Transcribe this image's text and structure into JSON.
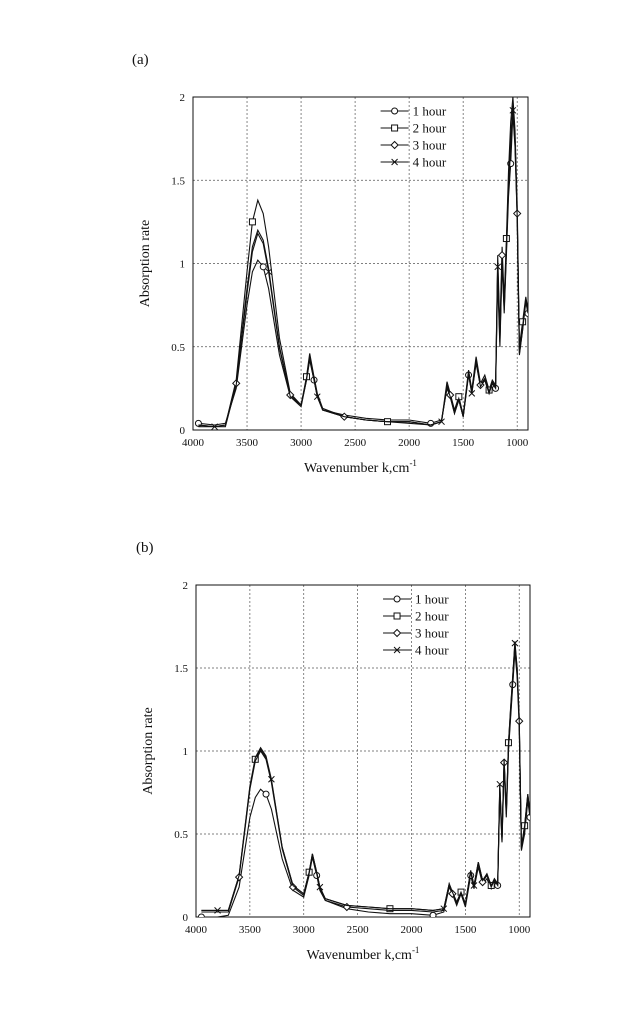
{
  "chart_data": [
    {
      "panel_label": "(a)",
      "type": "line",
      "title": "",
      "xlabel": "Wavenumber k,cm",
      "xlabel_sup": "-1",
      "ylabel": "Absorption rate",
      "xlim": [
        4000,
        900
      ],
      "ylim": [
        0,
        2
      ],
      "xticks": [
        4000,
        3500,
        3000,
        2500,
        2000,
        1500,
        1000
      ],
      "xtick_labels": [
        "4000",
        "3500",
        "3000",
        "2500",
        "2000",
        "1500",
        "1000"
      ],
      "yticks": [
        0,
        0.5,
        1,
        1.5,
        2
      ],
      "ytick_labels": [
        "0",
        "0.5",
        "1",
        "1.5",
        "2"
      ],
      "grid": true,
      "legend_position": "top-right",
      "series": [
        {
          "name": "1 hour",
          "marker": "circle",
          "x": [
            3950,
            3800,
            3700,
            3600,
            3500,
            3450,
            3400,
            3350,
            3300,
            3200,
            3100,
            3000,
            2950,
            2920,
            2880,
            2850,
            2800,
            2600,
            2400,
            2200,
            2000,
            1800,
            1700,
            1650,
            1620,
            1580,
            1540,
            1500,
            1450,
            1420,
            1380,
            1340,
            1300,
            1260,
            1230,
            1200,
            1180,
            1160,
            1140,
            1120,
            1100,
            1080,
            1060,
            1040,
            1020,
            1000,
            980,
            950,
            920,
            900
          ],
          "y": [
            0.04,
            0.03,
            0.04,
            0.25,
            0.75,
            0.95,
            1.02,
            0.98,
            0.85,
            0.45,
            0.2,
            0.15,
            0.3,
            0.42,
            0.3,
            0.2,
            0.12,
            0.09,
            0.07,
            0.06,
            0.06,
            0.04,
            0.06,
            0.25,
            0.2,
            0.1,
            0.18,
            0.08,
            0.33,
            0.22,
            0.4,
            0.26,
            0.3,
            0.22,
            0.28,
            0.25,
            0.9,
            0.5,
            1.0,
            0.7,
            1.05,
            1.4,
            1.6,
            1.9,
            1.7,
            1.27,
            0.45,
            0.6,
            0.78,
            0.7
          ]
        },
        {
          "name": "2 hour",
          "marker": "square",
          "x": [
            3950,
            3800,
            3700,
            3600,
            3500,
            3450,
            3400,
            3350,
            3300,
            3200,
            3100,
            3000,
            2950,
            2920,
            2880,
            2850,
            2800,
            2600,
            2400,
            2200,
            2000,
            1800,
            1700,
            1650,
            1620,
            1580,
            1540,
            1500,
            1450,
            1420,
            1380,
            1340,
            1300,
            1260,
            1230,
            1200,
            1180,
            1160,
            1140,
            1120,
            1100,
            1080,
            1060,
            1040,
            1020,
            1000,
            980,
            950,
            920,
            900
          ],
          "y": [
            0.03,
            0.02,
            0.03,
            0.3,
            0.95,
            1.25,
            1.38,
            1.3,
            1.1,
            0.55,
            0.22,
            0.15,
            0.32,
            0.46,
            0.32,
            0.22,
            0.13,
            0.08,
            0.06,
            0.05,
            0.05,
            0.03,
            0.05,
            0.29,
            0.22,
            0.12,
            0.2,
            0.09,
            0.36,
            0.24,
            0.44,
            0.28,
            0.33,
            0.24,
            0.3,
            0.27,
            1.05,
            0.6,
            1.1,
            0.78,
            1.15,
            1.55,
            1.85,
            2.0,
            1.8,
            1.35,
            0.5,
            0.65,
            0.8,
            0.72
          ]
        },
        {
          "name": "3 hour",
          "marker": "diamond",
          "x": [
            3950,
            3800,
            3700,
            3600,
            3500,
            3450,
            3400,
            3350,
            3300,
            3200,
            3100,
            3000,
            2950,
            2920,
            2880,
            2850,
            2800,
            2600,
            2400,
            2200,
            2000,
            1800,
            1700,
            1650,
            1620,
            1580,
            1540,
            1500,
            1450,
            1420,
            1380,
            1340,
            1300,
            1260,
            1230,
            1200,
            1180,
            1160,
            1140,
            1120,
            1100,
            1080,
            1060,
            1040,
            1020,
            1000,
            980,
            950,
            920,
            900
          ],
          "y": [
            0.03,
            0.02,
            0.03,
            0.28,
            0.85,
            1.1,
            1.2,
            1.14,
            0.97,
            0.5,
            0.21,
            0.15,
            0.31,
            0.44,
            0.31,
            0.21,
            0.12,
            0.08,
            0.06,
            0.05,
            0.05,
            0.03,
            0.05,
            0.27,
            0.21,
            0.11,
            0.19,
            0.08,
            0.35,
            0.23,
            0.42,
            0.27,
            0.31,
            0.23,
            0.29,
            0.26,
            1.0,
            0.55,
            1.05,
            0.74,
            1.1,
            1.5,
            1.75,
            1.95,
            1.75,
            1.3,
            0.48,
            0.62,
            0.79,
            0.71
          ]
        },
        {
          "name": "4 hour",
          "marker": "x",
          "x": [
            3950,
            3800,
            3700,
            3600,
            3500,
            3450,
            3400,
            3350,
            3300,
            3200,
            3100,
            3000,
            2950,
            2920,
            2880,
            2850,
            2800,
            2600,
            2400,
            2200,
            2000,
            1800,
            1700,
            1650,
            1620,
            1580,
            1540,
            1500,
            1450,
            1420,
            1380,
            1340,
            1300,
            1260,
            1230,
            1200,
            1180,
            1160,
            1140,
            1120,
            1100,
            1080,
            1060,
            1040,
            1020,
            1000,
            980,
            950,
            920,
            900
          ],
          "y": [
            0.02,
            0.02,
            0.02,
            0.27,
            0.82,
            1.07,
            1.18,
            1.12,
            0.95,
            0.49,
            0.2,
            0.14,
            0.3,
            0.43,
            0.3,
            0.2,
            0.12,
            0.08,
            0.06,
            0.05,
            0.04,
            0.03,
            0.05,
            0.26,
            0.2,
            0.1,
            0.18,
            0.08,
            0.34,
            0.22,
            0.41,
            0.26,
            0.3,
            0.22,
            0.28,
            0.25,
            0.98,
            0.53,
            1.02,
            0.72,
            1.08,
            1.45,
            1.7,
            1.92,
            1.72,
            1.28,
            0.46,
            0.6,
            0.77,
            0.7
          ]
        }
      ]
    },
    {
      "panel_label": "(b)",
      "type": "line",
      "title": "",
      "xlabel": "Wavenumber k,cm",
      "xlabel_sup": "-1",
      "ylabel": "Absorption rate",
      "xlim": [
        4000,
        900
      ],
      "ylim": [
        0,
        2
      ],
      "xticks": [
        4000,
        3500,
        3000,
        2500,
        2000,
        1500,
        1000
      ],
      "xtick_labels": [
        "4000",
        "3500",
        "3000",
        "2500",
        "2000",
        "1500",
        "1000"
      ],
      "yticks": [
        0,
        0.5,
        1,
        1.5,
        2
      ],
      "ytick_labels": [
        "0",
        "0.5",
        "1",
        "1.5",
        "2"
      ],
      "grid": true,
      "legend_position": "top-right",
      "series": [
        {
          "name": "1 hour",
          "marker": "circle",
          "x": [
            3950,
            3800,
            3700,
            3600,
            3500,
            3450,
            3400,
            3350,
            3300,
            3200,
            3100,
            3000,
            2950,
            2920,
            2880,
            2850,
            2800,
            2600,
            2400,
            2200,
            2000,
            1800,
            1700,
            1650,
            1620,
            1580,
            1540,
            1500,
            1450,
            1420,
            1380,
            1340,
            1300,
            1260,
            1230,
            1200,
            1180,
            1160,
            1140,
            1120,
            1100,
            1080,
            1060,
            1040,
            1020,
            1000,
            980,
            950,
            920,
            900
          ],
          "y": [
            0.0,
            0.0,
            0.01,
            0.18,
            0.6,
            0.72,
            0.77,
            0.74,
            0.65,
            0.35,
            0.16,
            0.12,
            0.25,
            0.36,
            0.25,
            0.16,
            0.1,
            0.05,
            0.03,
            0.02,
            0.02,
            0.01,
            0.03,
            0.18,
            0.14,
            0.07,
            0.14,
            0.06,
            0.25,
            0.17,
            0.3,
            0.2,
            0.23,
            0.17,
            0.21,
            0.19,
            0.75,
            0.45,
            0.9,
            0.6,
            1.0,
            1.2,
            1.4,
            1.6,
            1.45,
            1.15,
            0.4,
            0.5,
            0.7,
            0.6
          ]
        },
        {
          "name": "2 hour",
          "marker": "square",
          "x": [
            3950,
            3800,
            3700,
            3600,
            3500,
            3450,
            3400,
            3350,
            3300,
            3200,
            3100,
            3000,
            2950,
            2920,
            2880,
            2850,
            2800,
            2600,
            2400,
            2200,
            2000,
            1800,
            1700,
            1650,
            1620,
            1580,
            1540,
            1500,
            1450,
            1420,
            1380,
            1340,
            1300,
            1260,
            1230,
            1200,
            1180,
            1160,
            1140,
            1120,
            1100,
            1080,
            1060,
            1040,
            1020,
            1000,
            980,
            950,
            920,
            900
          ],
          "y": [
            0.04,
            0.04,
            0.04,
            0.25,
            0.78,
            0.95,
            1.01,
            0.96,
            0.82,
            0.42,
            0.19,
            0.14,
            0.27,
            0.38,
            0.27,
            0.18,
            0.11,
            0.07,
            0.06,
            0.05,
            0.05,
            0.04,
            0.05,
            0.2,
            0.15,
            0.09,
            0.15,
            0.08,
            0.28,
            0.19,
            0.33,
            0.22,
            0.26,
            0.19,
            0.23,
            0.2,
            0.8,
            0.48,
            0.95,
            0.64,
            1.05,
            1.25,
            1.45,
            1.66,
            1.5,
            1.2,
            0.42,
            0.55,
            0.74,
            0.62
          ]
        },
        {
          "name": "3 hour",
          "marker": "diamond",
          "x": [
            3950,
            3800,
            3700,
            3600,
            3500,
            3450,
            3400,
            3350,
            3300,
            3200,
            3100,
            3000,
            2950,
            2920,
            2880,
            2850,
            2800,
            2600,
            2400,
            2200,
            2000,
            1800,
            1700,
            1650,
            1620,
            1580,
            1540,
            1500,
            1450,
            1420,
            1380,
            1340,
            1300,
            1260,
            1230,
            1200,
            1180,
            1160,
            1140,
            1120,
            1100,
            1080,
            1060,
            1040,
            1020,
            1000,
            980,
            950,
            920,
            900
          ],
          "y": [
            0.03,
            0.03,
            0.03,
            0.24,
            0.77,
            0.94,
            1.0,
            0.95,
            0.81,
            0.41,
            0.18,
            0.13,
            0.26,
            0.37,
            0.26,
            0.17,
            0.1,
            0.06,
            0.05,
            0.04,
            0.04,
            0.03,
            0.04,
            0.19,
            0.14,
            0.08,
            0.14,
            0.07,
            0.27,
            0.18,
            0.32,
            0.21,
            0.25,
            0.18,
            0.22,
            0.19,
            0.78,
            0.46,
            0.93,
            0.62,
            1.02,
            1.22,
            1.42,
            1.63,
            1.48,
            1.18,
            0.41,
            0.53,
            0.72,
            0.61
          ]
        },
        {
          "name": "4 hour",
          "marker": "x",
          "x": [
            3950,
            3800,
            3700,
            3600,
            3500,
            3450,
            3400,
            3350,
            3300,
            3200,
            3100,
            3000,
            2950,
            2920,
            2880,
            2850,
            2800,
            2600,
            2400,
            2200,
            2000,
            1800,
            1700,
            1650,
            1620,
            1580,
            1540,
            1500,
            1450,
            1420,
            1380,
            1340,
            1300,
            1260,
            1230,
            1200,
            1180,
            1160,
            1140,
            1120,
            1100,
            1080,
            1060,
            1040,
            1020,
            1000,
            980,
            950,
            920,
            900
          ],
          "y": [
            0.04,
            0.04,
            0.04,
            0.25,
            0.79,
            0.96,
            1.02,
            0.97,
            0.83,
            0.42,
            0.19,
            0.14,
            0.27,
            0.38,
            0.27,
            0.18,
            0.11,
            0.07,
            0.06,
            0.05,
            0.05,
            0.04,
            0.05,
            0.2,
            0.15,
            0.09,
            0.15,
            0.08,
            0.28,
            0.19,
            0.33,
            0.22,
            0.26,
            0.19,
            0.23,
            0.2,
            0.8,
            0.48,
            0.95,
            0.64,
            1.05,
            1.26,
            1.46,
            1.65,
            1.5,
            1.2,
            0.42,
            0.55,
            0.74,
            0.62
          ]
        }
      ]
    }
  ]
}
